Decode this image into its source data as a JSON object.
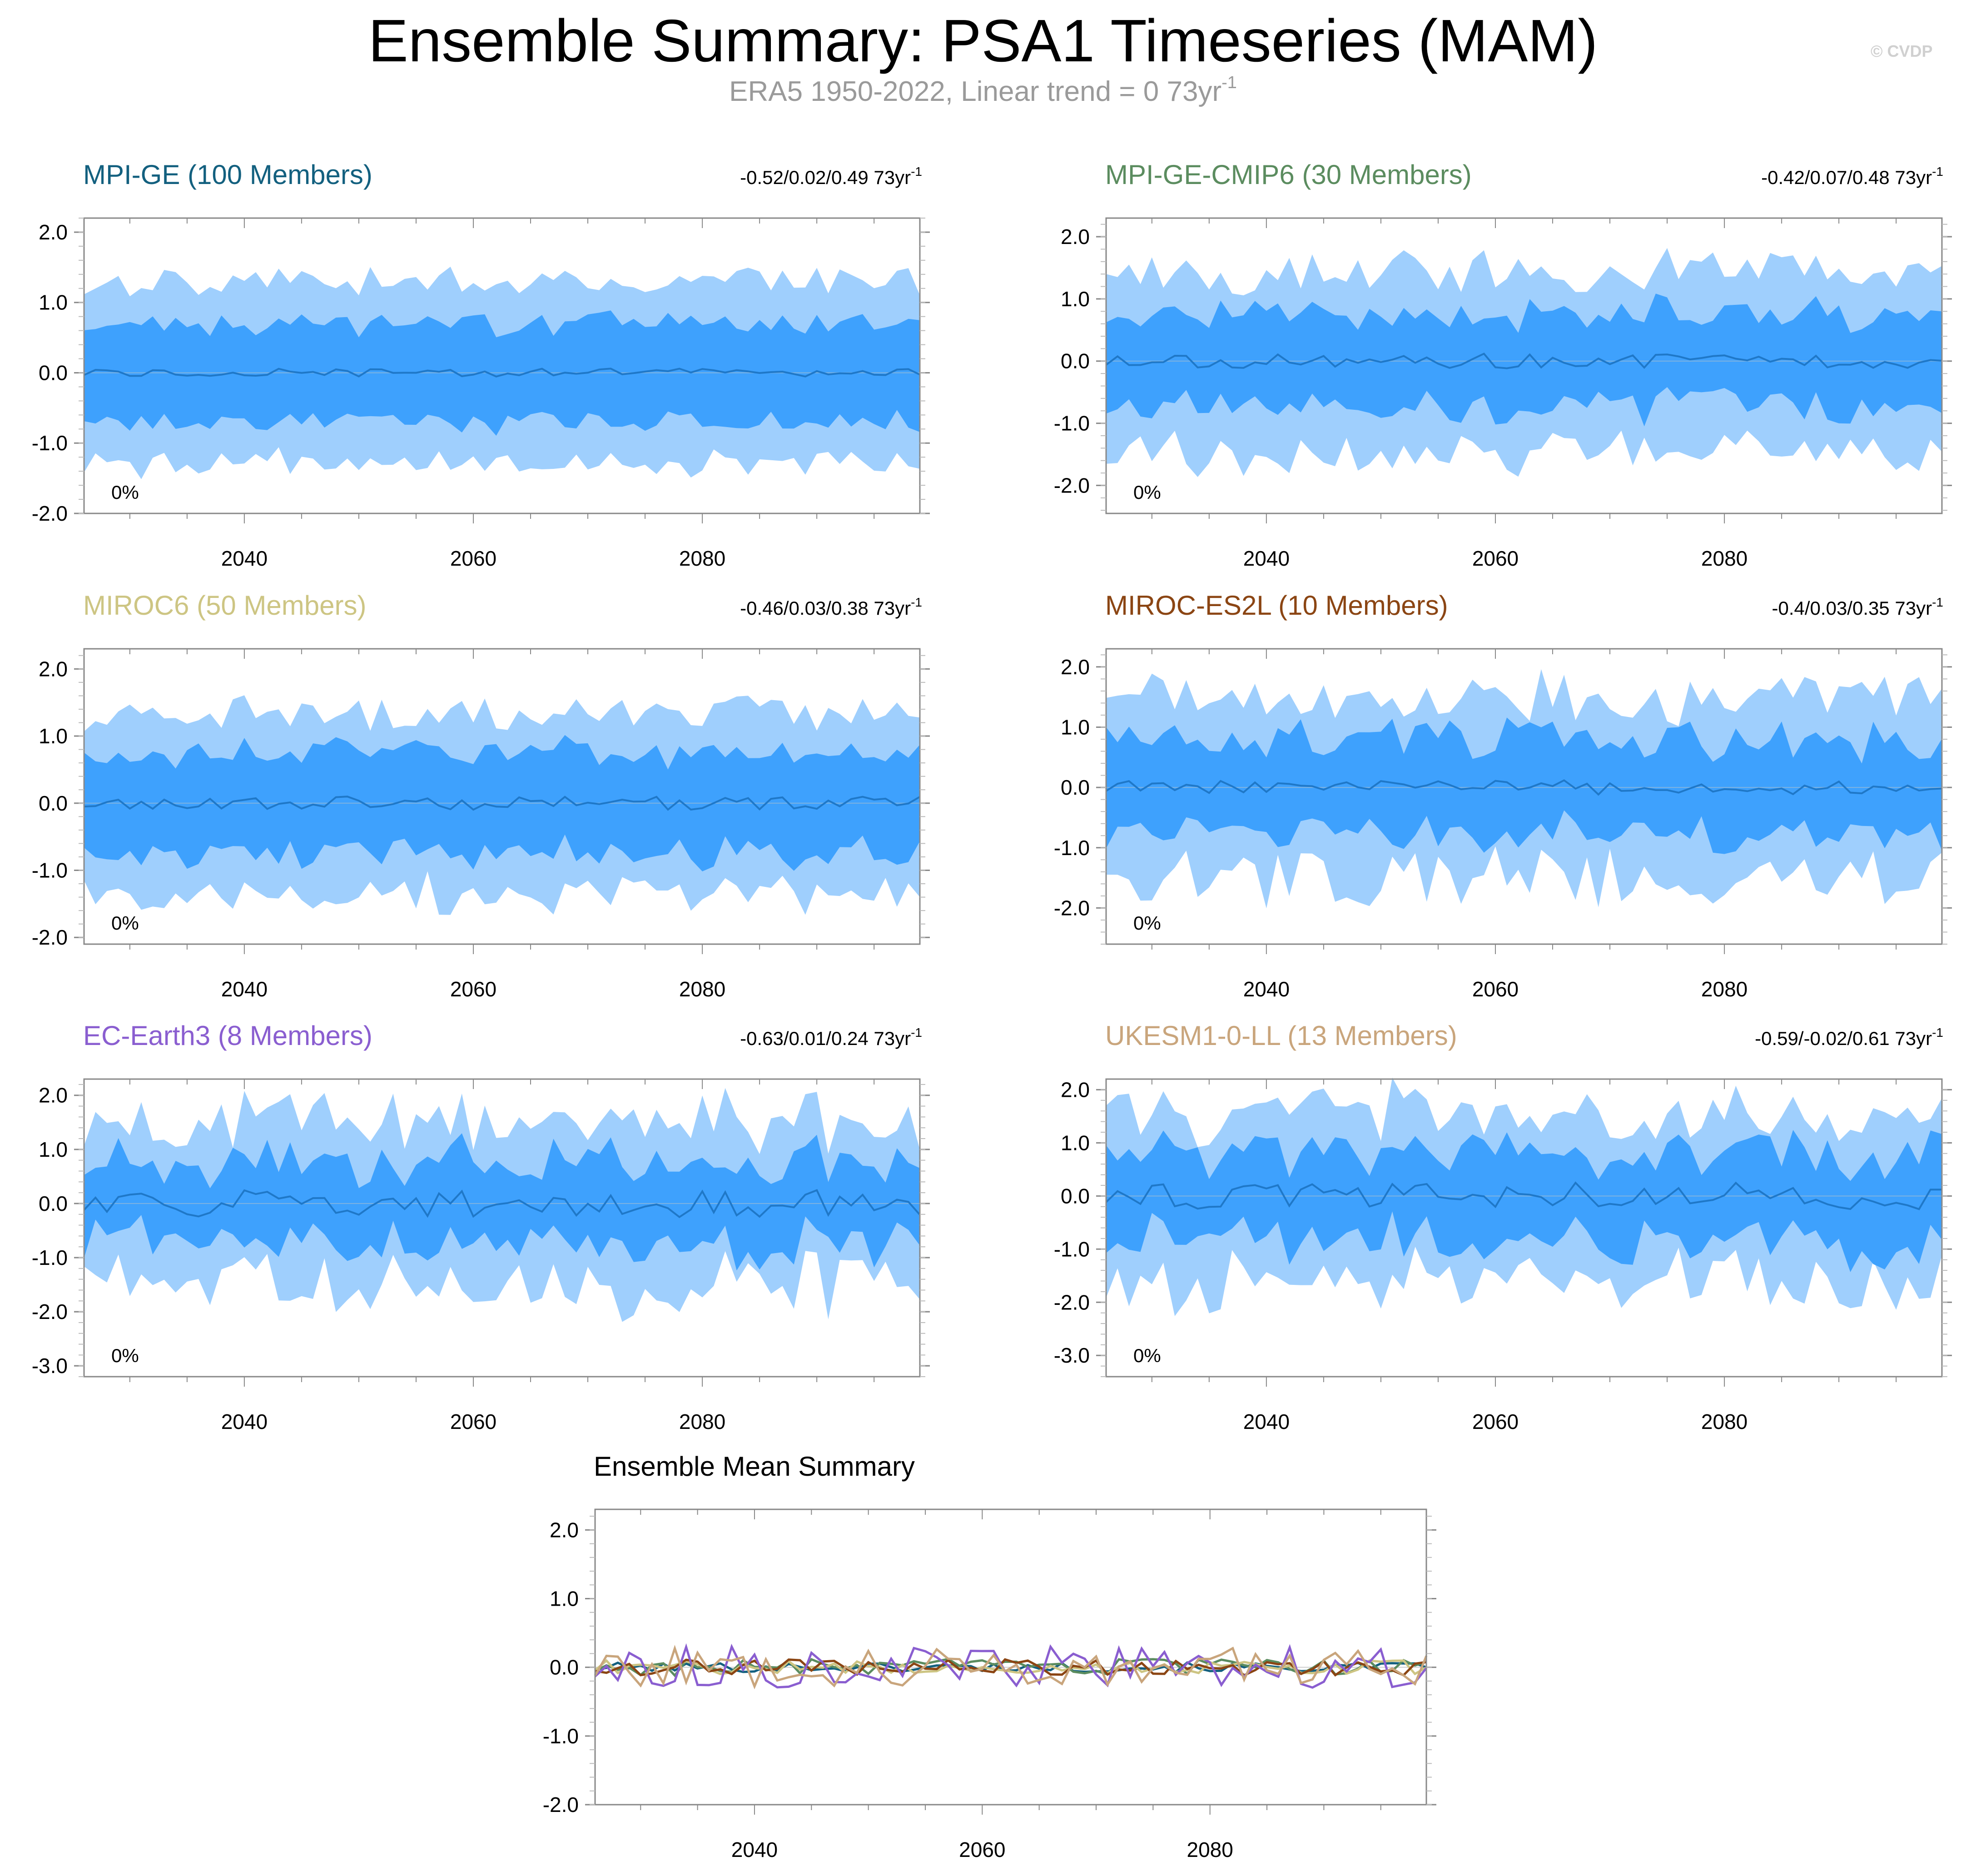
{
  "page": {
    "title": "Ensemble Summary: PSA1 Timeseries (MAM)",
    "subtitle": "ERA5 1950-2022, Linear trend = 0 73yr",
    "subtitle_exp": "-1",
    "unit_exp": "-1",
    "watermark": "© CVDP"
  },
  "colors": {
    "outer_band": "#9fcffd",
    "inner_band": "#3ea1fd",
    "mean_line": "#1f78c8",
    "zero_line": "#7fb3e0",
    "axis": "#888888"
  },
  "chart_data": [
    {
      "type": "area",
      "title": "MPI-GE (100 Members)",
      "title_color": "#13607f",
      "stat": "-0.52/0.02/0.49 73yr",
      "percent_label": "0%",
      "x_range": [
        2026,
        2099
      ],
      "ylim": [
        -2.0,
        2.2
      ],
      "yticks": [
        "2.0",
        "1.0",
        "0.0",
        "-1.0",
        "-2.0"
      ],
      "xticks": [
        "2040",
        "2060",
        "2080"
      ],
      "outer_amp": 1.3,
      "inner_amp": 0.7,
      "mean_amp": 0.06,
      "mean_offset": 0.0,
      "noise": 0.18,
      "seed": 11
    },
    {
      "type": "area",
      "title": "MPI-GE-CMIP6 (30 Members)",
      "title_color": "#5b8c5f",
      "stat": "-0.42/0.07/0.48 73yr",
      "percent_label": "0%",
      "x_range": [
        2026,
        2099
      ],
      "ylim": [
        -2.45,
        2.3
      ],
      "yticks": [
        "2.0",
        "1.0",
        "0.0",
        "-1.0",
        "-2.0"
      ],
      "xticks": [
        "2040",
        "2060",
        "2080"
      ],
      "outer_amp": 1.45,
      "inner_amp": 0.75,
      "mean_amp": 0.12,
      "mean_offset": 0.0,
      "noise": 0.3,
      "seed": 23
    },
    {
      "type": "area",
      "title": "MIROC6 (50 Members)",
      "title_color": "#cdc583",
      "stat": "-0.46/0.03/0.38 73yr",
      "percent_label": "0%",
      "x_range": [
        2026,
        2099
      ],
      "ylim": [
        -2.1,
        2.3
      ],
      "yticks": [
        "2.0",
        "1.0",
        "0.0",
        "-1.0",
        "-2.0"
      ],
      "xticks": [
        "2040",
        "2060",
        "2080"
      ],
      "outer_amp": 1.35,
      "inner_amp": 0.75,
      "mean_amp": 0.1,
      "mean_offset": 0.0,
      "noise": 0.25,
      "seed": 37
    },
    {
      "type": "area",
      "title": "MIROC-ES2L (10 Members)",
      "title_color": "#8b4513",
      "stat": "-0.4/0.03/0.35 73yr",
      "percent_label": "0%",
      "x_range": [
        2026,
        2099
      ],
      "ylim": [
        -2.6,
        2.3
      ],
      "yticks": [
        "2.0",
        "1.0",
        "0.0",
        "-1.0",
        "-2.0"
      ],
      "xticks": [
        "2040",
        "2060",
        "2080"
      ],
      "outer_amp": 1.5,
      "inner_amp": 0.8,
      "mean_amp": 0.12,
      "mean_offset": 0.0,
      "noise": 0.4,
      "seed": 51
    },
    {
      "type": "area",
      "title": "EC-Earth3 (8 Members)",
      "title_color": "#8a5ed0",
      "stat": "-0.63/0.01/0.24 73yr",
      "percent_label": "0%",
      "x_range": [
        2026,
        2099
      ],
      "ylim": [
        -3.2,
        2.3
      ],
      "yticks": [
        "2.0",
        "1.0",
        "0.0",
        "-1.0",
        "-2.0",
        "-3.0"
      ],
      "xticks": [
        "2040",
        "2060",
        "2080"
      ],
      "outer_amp": 1.5,
      "inner_amp": 0.75,
      "mean_amp": 0.25,
      "mean_offset": 0.0,
      "noise": 0.45,
      "seed": 67
    },
    {
      "type": "area",
      "title": "UKESM1-0-LL (13 Members)",
      "title_color": "#c9a57c",
      "stat": "-0.59/-0.02/0.61 73yr",
      "percent_label": "0%",
      "x_range": [
        2026,
        2099
      ],
      "ylim": [
        -3.4,
        2.2
      ],
      "yticks": [
        "2.0",
        "1.0",
        "0.0",
        "-1.0",
        "-2.0",
        "-3.0"
      ],
      "xticks": [
        "2040",
        "2060",
        "2080"
      ],
      "outer_amp": 1.6,
      "inner_amp": 0.85,
      "mean_amp": 0.25,
      "mean_offset": 0.0,
      "noise": 0.45,
      "seed": 83
    },
    {
      "type": "line",
      "title": "Ensemble Mean Summary",
      "title_color": "#000000",
      "x_range": [
        2026,
        2099
      ],
      "ylim": [
        -2.0,
        2.3
      ],
      "yticks": [
        "2.0",
        "1.0",
        "0.0",
        "-1.0",
        "-2.0"
      ],
      "xticks": [
        "2040",
        "2060",
        "2080"
      ],
      "series": [
        {
          "name": "MPI-GE",
          "color": "#13607f",
          "amp": 0.07,
          "seed": 101
        },
        {
          "name": "MPI-GE-CMIP6",
          "color": "#5b8c5f",
          "amp": 0.12,
          "seed": 103
        },
        {
          "name": "MIROC6",
          "color": "#cdc583",
          "amp": 0.1,
          "seed": 107
        },
        {
          "name": "MIROC-ES2L",
          "color": "#8b4513",
          "amp": 0.12,
          "seed": 109
        },
        {
          "name": "EC-Earth3",
          "color": "#8a5ed0",
          "amp": 0.3,
          "seed": 113
        },
        {
          "name": "UKESM1-0-LL",
          "color": "#c9a57c",
          "amp": 0.28,
          "seed": 127
        }
      ]
    }
  ]
}
